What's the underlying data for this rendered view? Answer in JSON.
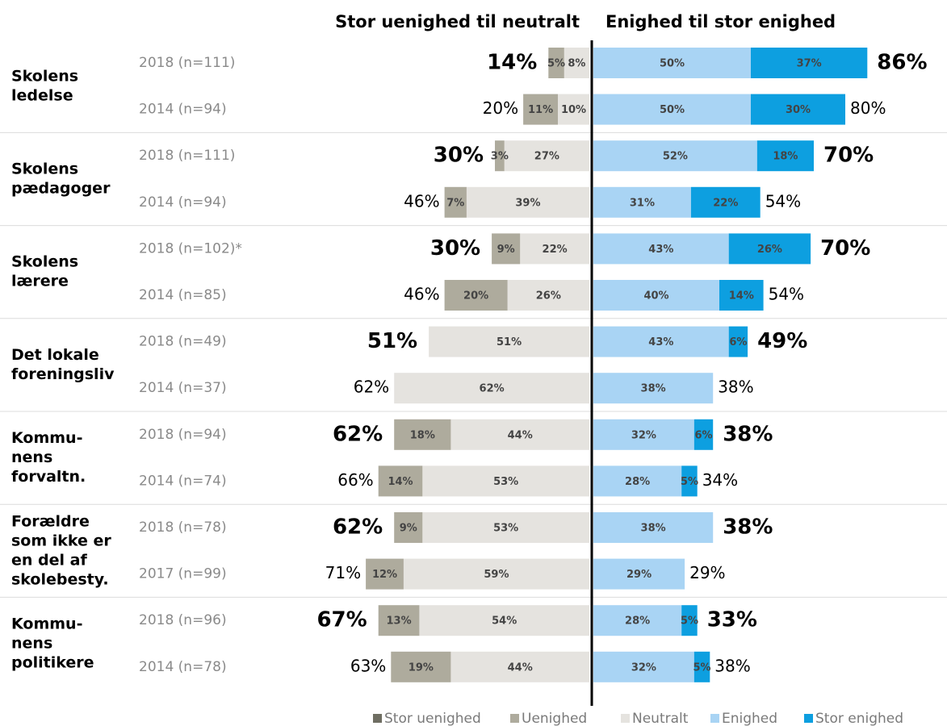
{
  "chart_data": {
    "type": "diverging_bar",
    "left_heading": "Stor uenighed til neutralt",
    "right_heading": "Enighed til stor enighed",
    "groups": [
      [
        "Skolens",
        "ledelse"
      ],
      [
        "Skolens",
        "pædagoger"
      ],
      [
        "Skolens",
        "lærere"
      ],
      [
        "Det lokale",
        "foreningsliv"
      ],
      [
        "Kommu-",
        "nens",
        "forvaltn."
      ],
      [
        "Forældre",
        "som ikke er",
        "en del af",
        "skolebesty."
      ],
      [
        "Kommu-",
        "nens",
        "politikere"
      ]
    ],
    "categories": [
      "2018 (n=111)",
      "2014 (n=94)",
      "2018 (n=111)",
      "2014 (n=94)",
      "2018 (n=102)*",
      "2014 (n=85)",
      "2018 (n=49)",
      "2014 (n=37)",
      "2018 (n=94)",
      "2014 (n=74)",
      "2018 (n=78)",
      "2017 (n=99)",
      "2018 (n=96)",
      "2014 (n=78)"
    ],
    "series": [
      {
        "name": "Stor uenighed",
        "color": "#6f6e62",
        "side": "left",
        "values": [
          null,
          null,
          null,
          null,
          null,
          null,
          null,
          null,
          null,
          null,
          null,
          null,
          null,
          null
        ],
        "value_labels": [
          null,
          null,
          null,
          null,
          null,
          null,
          null,
          null,
          null,
          null,
          null,
          null,
          null,
          null
        ]
      },
      {
        "name": "Uenighed",
        "color": "#aeab9d",
        "side": "left",
        "values": [
          5,
          11,
          3,
          7,
          9,
          20,
          null,
          null,
          18,
          14,
          9,
          12,
          13,
          19
        ],
        "value_labels": [
          "5%",
          "11%",
          "3%",
          "7%",
          "9%",
          "20%",
          null,
          null,
          "18%",
          "14%",
          "9%",
          "12%",
          "13%",
          "19%"
        ]
      },
      {
        "name": "Neutralt",
        "color": "#e5e3df",
        "side": "left",
        "values": [
          8,
          10,
          27,
          39,
          22,
          26,
          51,
          62,
          44,
          53,
          53,
          59,
          54,
          44
        ],
        "value_labels": [
          "8%",
          "10%",
          "27%",
          "39%",
          "22%",
          "26%",
          "51%",
          "62%",
          "44%",
          "53%",
          "53%",
          "59%",
          "54%",
          "44%"
        ]
      },
      {
        "name": "Enighed",
        "color": "#a9d4f4",
        "side": "right",
        "values": [
          50,
          50,
          52,
          31,
          43,
          40,
          43,
          38,
          32,
          28,
          38,
          29,
          28,
          32
        ],
        "value_labels": [
          "50%",
          "50%",
          "52%",
          "31%",
          "43%",
          "40%",
          "43%",
          "38%",
          "32%",
          "28%",
          "38%",
          "29%",
          "28%",
          "32%"
        ]
      },
      {
        "name": "Stor enighed",
        "color": "#0d9fe0",
        "side": "right",
        "values": [
          37,
          30,
          18,
          22,
          26,
          14,
          6,
          null,
          6,
          5,
          null,
          null,
          5,
          5
        ],
        "value_labels": [
          "37%",
          "30%",
          "18%",
          "22%",
          "26%",
          "14%",
          "6%",
          null,
          "6%",
          "5%",
          null,
          null,
          "5%",
          "5%"
        ]
      }
    ],
    "left_totals": {
      "values": [
        14,
        20,
        30,
        46,
        30,
        46,
        51,
        62,
        62,
        66,
        62,
        71,
        67,
        63
      ],
      "value_labels": [
        "14%",
        "20%",
        "30%",
        "46%",
        "30%",
        "46%",
        "51%",
        "62%",
        "62%",
        "66%",
        "62%",
        "71%",
        "67%",
        "63%"
      ]
    },
    "right_totals": {
      "values": [
        86,
        80,
        70,
        54,
        70,
        54,
        49,
        38,
        38,
        34,
        38,
        29,
        33,
        38
      ],
      "value_labels": [
        "86%",
        "80%",
        "70%",
        "54%",
        "70%",
        "54%",
        "49%",
        "38%",
        "38%",
        "34%",
        "38%",
        "29%",
        "33%",
        "38%"
      ]
    },
    "legend": "bottom"
  }
}
